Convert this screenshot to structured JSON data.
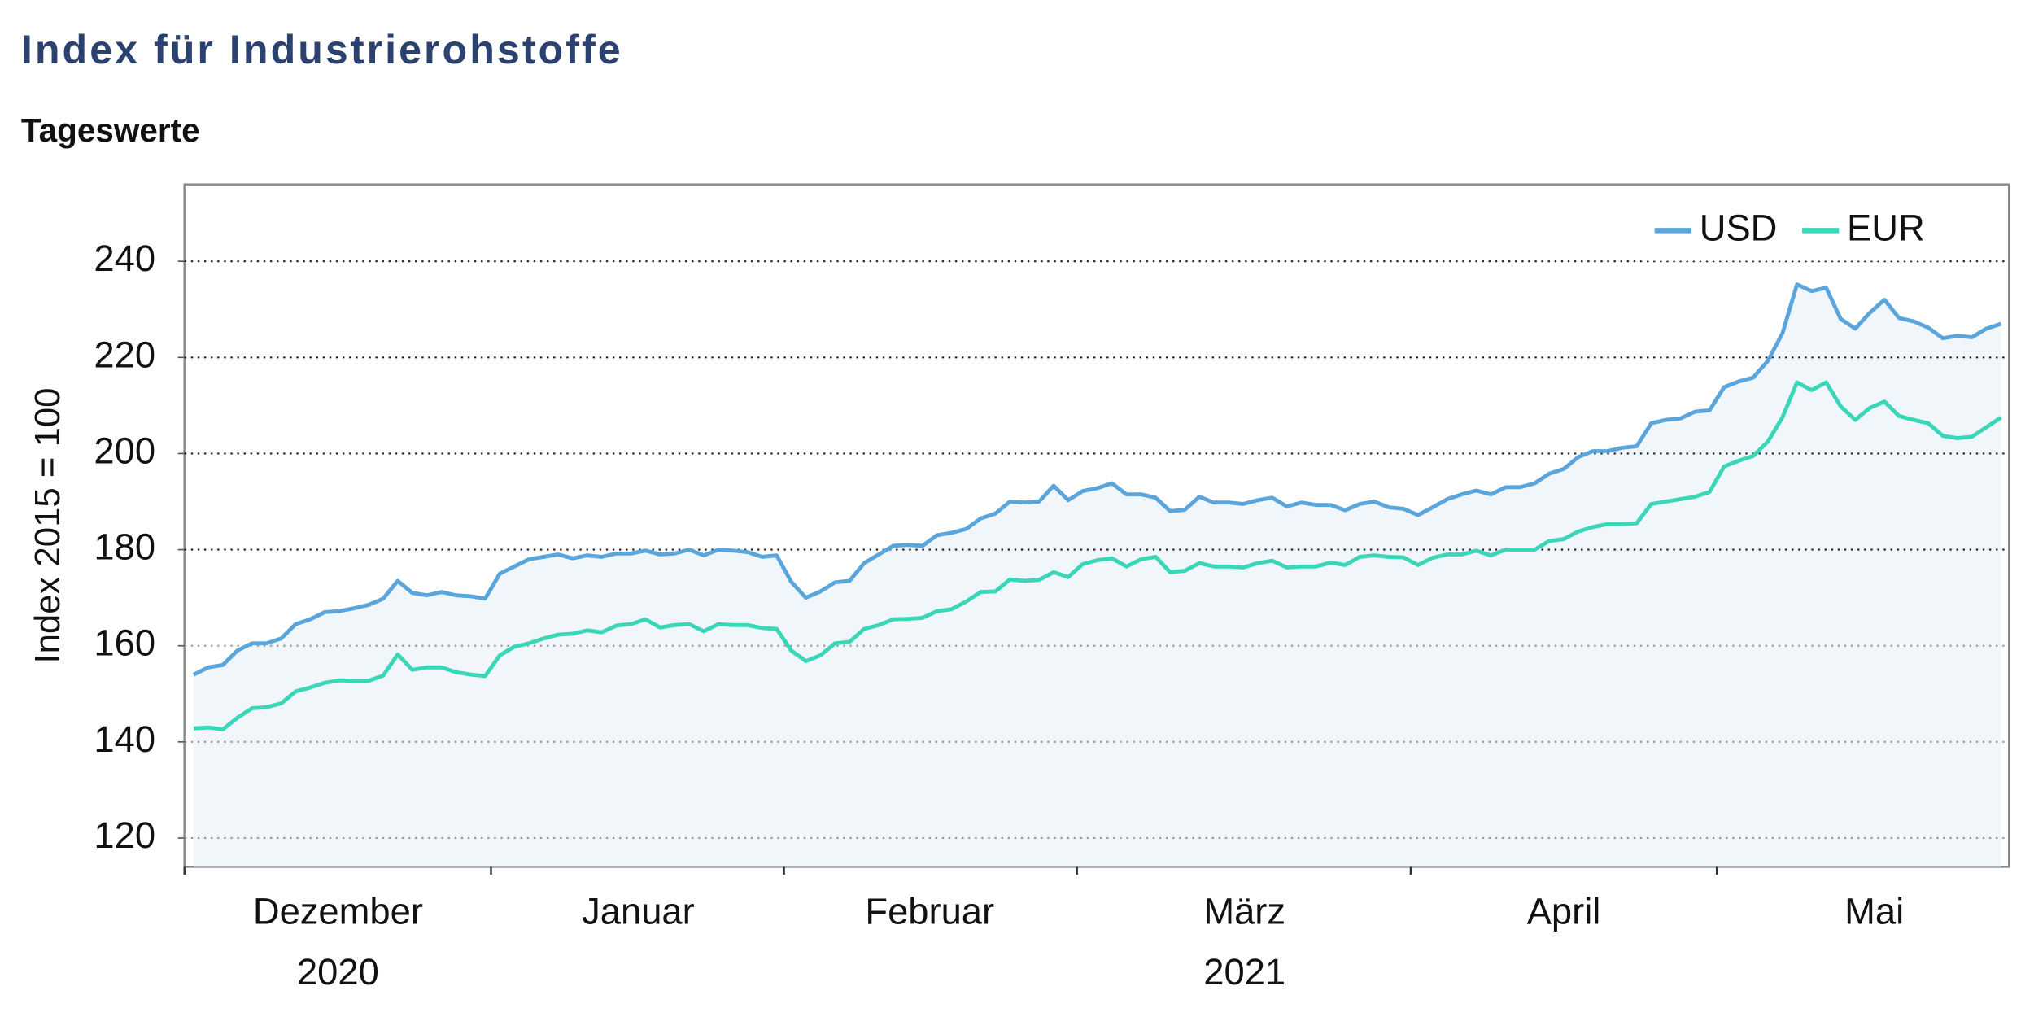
{
  "chart_data": {
    "type": "line",
    "title": "Index für Industrierohstoffe",
    "subtitle": "Tageswerte",
    "ylabel": "Index 2015 = 100",
    "x_labels": [
      "Dezember",
      "Januar",
      "Februar",
      "März",
      "April",
      "Mai"
    ],
    "year_labels": [
      "2020",
      "2021"
    ],
    "ylim": [
      114,
      256
    ],
    "yticks": [
      120,
      140,
      160,
      180,
      200,
      220,
      240
    ],
    "grid": true,
    "legend": "upper right",
    "series": [
      {
        "name": "USD",
        "color": "#5aa5dc",
        "values": [
          154,
          155.5,
          156,
          159,
          160.5,
          160.5,
          161.5,
          164.5,
          165.5,
          167,
          167.2,
          167.8,
          168.5,
          169.8,
          173.5,
          171,
          170.5,
          171.2,
          170.5,
          170.3,
          169.8,
          175,
          176.5,
          178,
          178.5,
          179,
          178.2,
          178.8,
          178.5,
          179.2,
          179.2,
          179.8,
          179,
          179.2,
          180,
          178.8,
          180,
          179.8,
          179.5,
          178.5,
          178.8,
          173.3,
          170,
          171.3,
          173.2,
          173.5,
          177.2,
          179,
          180.8,
          181,
          180.8,
          183,
          183.5,
          184.3,
          186.5,
          187.5,
          190,
          189.8,
          190,
          193.3,
          190.3,
          192.2,
          192.8,
          193.8,
          191.5,
          191.5,
          190.8,
          188,
          188.3,
          191,
          189.8,
          189.8,
          189.5,
          190.3,
          190.8,
          189,
          189.8,
          189.3,
          189.3,
          188.2,
          189.5,
          190,
          188.8,
          188.5,
          187.2,
          188.8,
          190.5,
          191.5,
          192.3,
          191.5,
          193,
          193,
          193.8,
          195.8,
          196.8,
          199.3,
          200.5,
          200.5,
          201.2,
          201.5,
          206.3,
          207,
          207.3,
          208.7,
          209,
          213.8,
          215,
          215.8,
          219.3,
          225,
          235.2,
          233.8,
          234.5,
          228,
          226,
          229.3,
          232,
          228.2,
          227.5,
          226.2,
          224,
          224.5,
          224.2,
          226,
          227
        ]
      },
      {
        "name": "EUR",
        "color": "#3ad6b8",
        "values": [
          142.8,
          143,
          142.6,
          145,
          147,
          147.2,
          148,
          150.5,
          151.3,
          152.3,
          152.8,
          152.7,
          152.7,
          153.8,
          158.2,
          155,
          155.5,
          155.5,
          154.5,
          154,
          153.7,
          158,
          159.8,
          160.5,
          161.5,
          162.3,
          162.5,
          163.2,
          162.8,
          164.2,
          164.5,
          165.5,
          163.8,
          164.3,
          164.5,
          163,
          164.5,
          164.3,
          164.3,
          163.7,
          163.5,
          159,
          156.8,
          158,
          160.5,
          160.8,
          163.5,
          164.3,
          165.5,
          165.6,
          165.8,
          167.2,
          167.6,
          169.2,
          171.2,
          171.3,
          173.8,
          173.5,
          173.7,
          175.3,
          174.3,
          177,
          177.8,
          178.2,
          176.5,
          178,
          178.5,
          175.3,
          175.6,
          177.2,
          176.5,
          176.5,
          176.3,
          177.2,
          177.7,
          176.3,
          176.5,
          176.5,
          177.3,
          176.8,
          178.5,
          178.8,
          178.5,
          178.4,
          176.8,
          178.3,
          179,
          179,
          179.8,
          178.8,
          180,
          180,
          180,
          181.8,
          182.2,
          183.8,
          184.7,
          185.3,
          185.3,
          185.5,
          189.5,
          190,
          190.5,
          191,
          192,
          197.3,
          198.5,
          199.5,
          202.5,
          207.5,
          214.8,
          213.2,
          214.8,
          209.8,
          207,
          209.5,
          210.8,
          207.8,
          207,
          206.3,
          203.7,
          203.2,
          203.5,
          205.5,
          207.5
        ]
      }
    ]
  }
}
